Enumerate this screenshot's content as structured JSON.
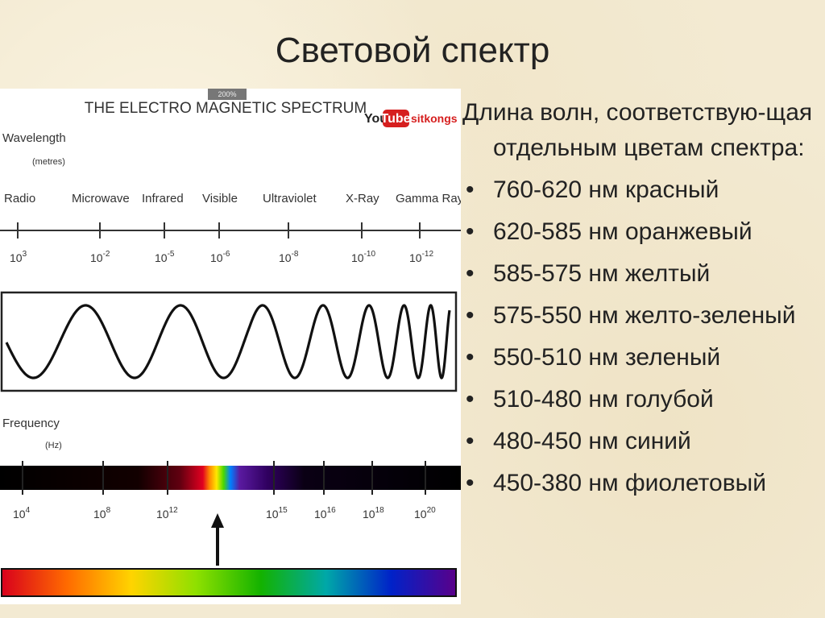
{
  "slide": {
    "title": "Световой спектр"
  },
  "figure": {
    "title": "THE ELECTRO MAGNETIC SPECTRUM",
    "zoom_badge": "200%",
    "watermark": {
      "you": "You",
      "tube": "Tube",
      "channel": "sitkongs",
      "tube_color": "#d61f1f"
    },
    "wavelength_label": "Wavelength",
    "wavelength_unit": "(metres)",
    "frequency_label": "Frequency",
    "frequency_unit": "(Hz)",
    "bands": [
      "Radio",
      "Microwave",
      "Infrared",
      "Visible",
      "Ultraviolet",
      "X-Ray",
      "Gamma Ray"
    ],
    "wavelength_ticks": [
      {
        "base": "10",
        "exp": "3"
      },
      {
        "base": "10",
        "exp": "-2"
      },
      {
        "base": "10",
        "exp": "-5"
      },
      {
        "base": "10",
        "exp": "-6"
      },
      {
        "base": "10",
        "exp": "-8"
      },
      {
        "base": "10",
        "exp": "-10"
      },
      {
        "base": "10",
        "exp": "-12"
      }
    ],
    "frequency_ticks": [
      {
        "base": "10",
        "exp": "4"
      },
      {
        "base": "10",
        "exp": "8"
      },
      {
        "base": "10",
        "exp": "12"
      },
      {
        "base": "10",
        "exp": "15"
      },
      {
        "base": "10",
        "exp": "16"
      },
      {
        "base": "10",
        "exp": "18"
      },
      {
        "base": "10",
        "exp": "20"
      }
    ],
    "visible_colors": [
      "#d8001c",
      "#ff6a00",
      "#ffd400",
      "#8ee000",
      "#13b200",
      "#00a8a8",
      "#0022c8",
      "#5a008a"
    ]
  },
  "intro": "Длина волн, соответствую-щая отдельным цветам спектра:",
  "ranges": [
    {
      "bullet": "•",
      "text": "760-620 нм красный"
    },
    {
      "bullet": "•",
      "text": "620-585 нм  оранжевый"
    },
    {
      "bullet": "•",
      "text": "585-575 нм желтый"
    },
    {
      "bullet": "•",
      "text": "575-550 нм желто-зеленый"
    },
    {
      "bullet": "•",
      "text": "550-510 нм зеленый"
    },
    {
      "bullet": "•",
      "text": "510-480 нм голубой"
    },
    {
      "bullet": "•",
      "text": "480-450 нм синий"
    },
    {
      "bullet": "•",
      "text": "450-380 нм фиолетовый"
    }
  ]
}
